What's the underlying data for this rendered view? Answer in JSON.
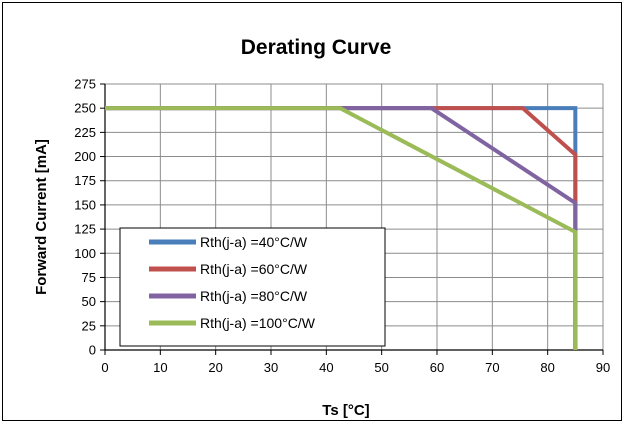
{
  "chart_data": {
    "type": "line",
    "title": "Derating Curve",
    "xlabel": "Ts [°C]",
    "ylabel": "Forward Current [mA]",
    "xlim": [
      0,
      90
    ],
    "ylim": [
      0,
      275
    ],
    "xticks": [
      0,
      10,
      20,
      30,
      40,
      50,
      60,
      70,
      80,
      90
    ],
    "yticks": [
      0,
      25,
      50,
      75,
      100,
      125,
      150,
      175,
      200,
      225,
      250,
      275
    ],
    "grid": true,
    "legend_position": "bottom-left",
    "series": [
      {
        "name": "Rth(j-a) =40°C/W",
        "color": "#4a7ebb",
        "points": [
          [
            0,
            250
          ],
          [
            85,
            250
          ],
          [
            85,
            0
          ]
        ]
      },
      {
        "name": "Rth(j-a) =60°C/W",
        "color": "#c0504d",
        "points": [
          [
            0,
            250
          ],
          [
            75.5,
            250
          ],
          [
            85,
            202
          ],
          [
            85,
            0
          ]
        ]
      },
      {
        "name": "Rth(j-a) =80°C/W",
        "color": "#8064a2",
        "points": [
          [
            0,
            250
          ],
          [
            59,
            250
          ],
          [
            85,
            152
          ],
          [
            85,
            0
          ]
        ]
      },
      {
        "name": "Rth(j-a) =100°C/W",
        "color": "#9bbb59",
        "points": [
          [
            0,
            250
          ],
          [
            42.5,
            250
          ],
          [
            85,
            122
          ],
          [
            85,
            0
          ]
        ]
      }
    ]
  }
}
